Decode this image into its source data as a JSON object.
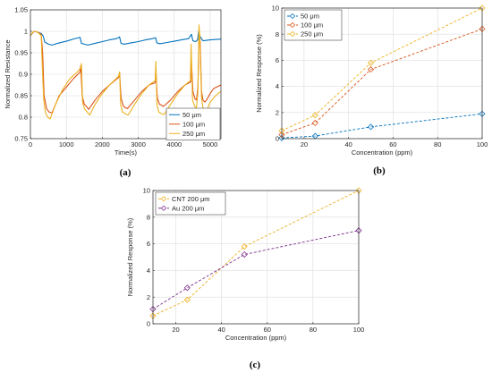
{
  "chart_data": [
    {
      "type": "line",
      "panel_label": "(a)",
      "xlabel": "Time(s)",
      "ylabel": "Normalized Resistance",
      "xlim": [
        0,
        5300
      ],
      "ylim": [
        0.75,
        1.05
      ],
      "xticks": [
        0,
        1000,
        2000,
        3000,
        4000,
        5000
      ],
      "yticks": [
        0.75,
        0.8,
        0.85,
        0.9,
        0.95,
        1,
        1.05
      ],
      "grid": true,
      "legend": "bottom-right",
      "series": [
        {
          "name": "50 μm",
          "color": "#0072BD",
          "x": [
            0,
            50,
            100,
            200,
            300,
            350,
            400,
            500,
            600,
            800,
            1000,
            1200,
            1380,
            1420,
            1500,
            1600,
            1800,
            2000,
            2200,
            2400,
            2480,
            2520,
            2600,
            2800,
            3000,
            3200,
            3400,
            3480,
            3520,
            3600,
            3800,
            4000,
            4200,
            4400,
            4480,
            4520,
            4600,
            4650,
            4680,
            4720,
            4800,
            5000,
            5300
          ],
          "y": [
            0.99,
            0.995,
            1.0,
            0.998,
            0.995,
            0.99,
            0.975,
            0.97,
            0.968,
            0.973,
            0.977,
            0.982,
            0.986,
            0.972,
            0.97,
            0.968,
            0.972,
            0.976,
            0.98,
            0.983,
            0.987,
            0.972,
            0.97,
            0.973,
            0.976,
            0.98,
            0.983,
            0.985,
            0.973,
            0.971,
            0.974,
            0.977,
            0.98,
            0.983,
            0.993,
            0.978,
            0.976,
            0.98,
            1.0,
            0.988,
            0.978,
            0.98,
            0.982
          ]
        },
        {
          "name": "100 μm",
          "color": "#D95319",
          "x": [
            0,
            50,
            100,
            200,
            300,
            340,
            380,
            450,
            520,
            600,
            800,
            1000,
            1200,
            1380,
            1400,
            1440,
            1500,
            1560,
            1620,
            1800,
            2000,
            2200,
            2460,
            2480,
            2520,
            2580,
            2640,
            2700,
            2900,
            3100,
            3300,
            3470,
            3490,
            3530,
            3590,
            3650,
            3700,
            3900,
            4100,
            4300,
            4460,
            4480,
            4520,
            4580,
            4620,
            4660,
            4690,
            4720,
            4760,
            4800,
            4850,
            4900,
            5000,
            5100,
            5300
          ],
          "y": [
            0.99,
            0.995,
            1.0,
            0.998,
            0.993,
            0.95,
            0.85,
            0.82,
            0.812,
            0.81,
            0.85,
            0.87,
            0.89,
            0.905,
            0.92,
            0.85,
            0.83,
            0.825,
            0.818,
            0.84,
            0.86,
            0.875,
            0.893,
            0.905,
            0.845,
            0.827,
            0.822,
            0.82,
            0.84,
            0.86,
            0.875,
            0.88,
            0.91,
            0.845,
            0.83,
            0.828,
            0.825,
            0.84,
            0.86,
            0.875,
            0.882,
            0.93,
            0.86,
            0.842,
            0.84,
            0.87,
            1.0,
            0.98,
            0.86,
            0.84,
            0.835,
            0.84,
            0.855,
            0.867,
            0.875
          ]
        },
        {
          "name": "250 μm",
          "color": "#EDB120",
          "x": [
            0,
            50,
            100,
            200,
            300,
            330,
            370,
            420,
            480,
            550,
            700,
            900,
            1100,
            1300,
            1400,
            1420,
            1450,
            1500,
            1580,
            1650,
            1800,
            2000,
            2200,
            2450,
            2480,
            2510,
            2560,
            2640,
            2720,
            2900,
            3100,
            3300,
            3470,
            3490,
            3520,
            3570,
            3650,
            3720,
            3900,
            4100,
            4300,
            4450,
            4470,
            4510,
            4570,
            4620,
            4660,
            4690,
            4710,
            4760,
            4800,
            4860,
            4920,
            5000,
            5150,
            5300
          ],
          "y": [
            0.99,
            0.996,
            1.0,
            0.998,
            0.99,
            0.92,
            0.84,
            0.81,
            0.8,
            0.796,
            0.83,
            0.865,
            0.89,
            0.905,
            0.915,
            0.925,
            0.835,
            0.82,
            0.812,
            0.805,
            0.83,
            0.855,
            0.875,
            0.895,
            0.905,
            0.83,
            0.812,
            0.808,
            0.805,
            0.83,
            0.855,
            0.875,
            0.885,
            0.93,
            0.83,
            0.812,
            0.808,
            0.806,
            0.83,
            0.855,
            0.875,
            0.885,
            0.97,
            0.84,
            0.825,
            0.822,
            0.86,
            1.015,
            0.99,
            0.845,
            0.822,
            0.815,
            0.818,
            0.835,
            0.85,
            0.86
          ]
        }
      ]
    },
    {
      "type": "line",
      "panel_label": "(b)",
      "xlabel": "Concentration (ppm)",
      "ylabel": "Normalized Response (%)",
      "xlim": [
        10,
        100
      ],
      "ylim": [
        0,
        10
      ],
      "xticks": [
        20,
        40,
        60,
        80,
        100
      ],
      "yticks": [
        0,
        2,
        4,
        6,
        8,
        10
      ],
      "grid": true,
      "legend": "top-left",
      "series": [
        {
          "name": "50 μm",
          "color": "#0072BD",
          "x": [
            10,
            25,
            50,
            100
          ],
          "y": [
            0.05,
            0.2,
            0.9,
            1.9
          ]
        },
        {
          "name": "100 μm",
          "color": "#D95319",
          "x": [
            10,
            25,
            50,
            100
          ],
          "y": [
            0.3,
            1.2,
            5.3,
            8.4
          ]
        },
        {
          "name": "250 μm",
          "color": "#EDB120",
          "x": [
            10,
            25,
            50,
            100
          ],
          "y": [
            0.6,
            1.8,
            5.8,
            10.0
          ]
        }
      ]
    },
    {
      "type": "line",
      "panel_label": "(c)",
      "xlabel": "Concentration (ppm)",
      "ylabel": "Normalized Response (%)",
      "xlim": [
        10,
        100
      ],
      "ylim": [
        0,
        10
      ],
      "xticks": [
        20,
        40,
        60,
        80,
        100
      ],
      "yticks": [
        0,
        2,
        4,
        6,
        8,
        10
      ],
      "grid": true,
      "legend": "top-left",
      "series": [
        {
          "name": "CNT 200 μm",
          "color": "#EDB120",
          "x": [
            10,
            25,
            50,
            100
          ],
          "y": [
            0.6,
            1.8,
            5.8,
            10.0
          ]
        },
        {
          "name": "Au 200 μm",
          "color": "#7E2F8E",
          "x": [
            10,
            25,
            50,
            100
          ],
          "y": [
            1.1,
            2.7,
            5.2,
            7.0
          ]
        }
      ]
    }
  ]
}
